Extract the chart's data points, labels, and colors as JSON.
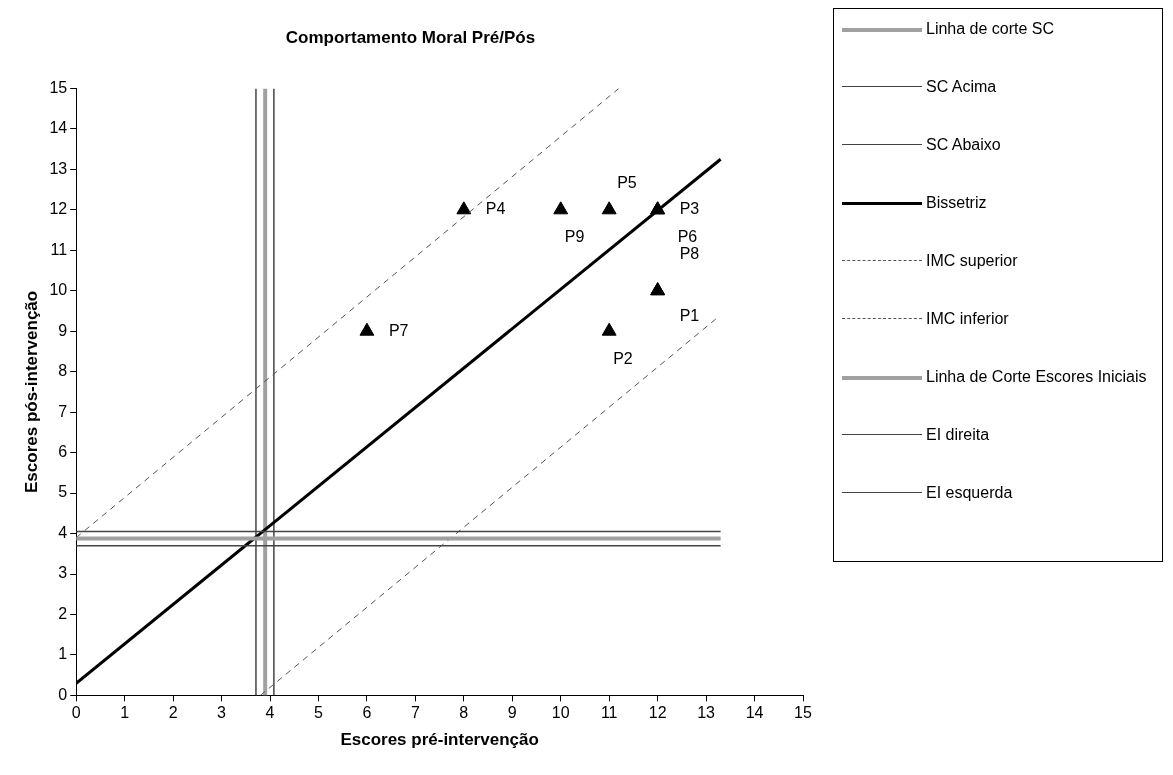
{
  "chart_data": {
    "type": "line",
    "title": "Comportamento Moral Pré/Pós",
    "xlabel": "Escores pré-intervenção",
    "ylabel": "Escores pós-intervenção",
    "xlim": [
      0,
      15
    ],
    "ylim": [
      0,
      15
    ],
    "xticks": [
      0,
      1,
      2,
      3,
      4,
      5,
      6,
      7,
      8,
      9,
      10,
      11,
      12,
      13,
      14,
      15
    ],
    "yticks": [
      0,
      1,
      2,
      3,
      4,
      5,
      6,
      7,
      8,
      9,
      10,
      11,
      12,
      13,
      14,
      15
    ],
    "grid": false,
    "legend": "right",
    "series": [
      {
        "name": "Linha de corte SC",
        "type": "line",
        "color": "#a0a0a0",
        "line_style": "solid",
        "x": [
          0,
          13.3
        ],
        "values": [
          3.88,
          3.88
        ]
      },
      {
        "name": "SC Acima",
        "type": "line",
        "color": "#444444",
        "line_style": "solid",
        "x": [
          0,
          13.3
        ],
        "values": [
          4.05,
          4.05
        ]
      },
      {
        "name": "SC Abaixo",
        "type": "line",
        "color": "#444444",
        "line_style": "solid",
        "x": [
          0,
          13.3
        ],
        "values": [
          3.7,
          3.7
        ]
      },
      {
        "name": "Bissetriz",
        "type": "line",
        "color": "#000000",
        "line_style": "solid",
        "x": [
          0,
          13.3
        ],
        "values": [
          0.3,
          13.25
        ]
      },
      {
        "name": "IMC superior",
        "type": "line",
        "color": "#555555",
        "line_style": "dashed",
        "x": [
          0,
          11.2
        ],
        "values": [
          3.9,
          15
        ]
      },
      {
        "name": "IMC inferior",
        "type": "line",
        "color": "#555555",
        "line_style": "dashed",
        "x": [
          3.8,
          13.2
        ],
        "values": [
          0,
          9.3
        ]
      },
      {
        "name": "Linha de Corte Escores Iniciais",
        "type": "line",
        "color": "#a0a0a0",
        "line_style": "solid",
        "x": [
          3.9,
          3.9
        ],
        "values": [
          0,
          15
        ]
      },
      {
        "name": "EI direita",
        "type": "line",
        "color": "#444444",
        "line_style": "solid",
        "x": [
          4.08,
          4.08
        ],
        "values": [
          0,
          15
        ]
      },
      {
        "name": "EI esquerda",
        "type": "line",
        "color": "#444444",
        "line_style": "solid",
        "x": [
          3.71,
          3.71
        ],
        "values": [
          0,
          15
        ]
      },
      {
        "type": "scatter",
        "marker": "triangle",
        "color": "#000000",
        "x": [
          12,
          11,
          12,
          8,
          11,
          12,
          6,
          12,
          10
        ],
        "values": [
          10,
          9,
          12,
          12,
          12,
          12,
          9,
          10,
          12
        ]
      }
    ],
    "annotations": [
      {
        "text": "P1",
        "x": 12,
        "y": 10
      },
      {
        "text": "P2",
        "x": 11,
        "y": 9
      },
      {
        "text": "P3",
        "x": 12,
        "y": 12
      },
      {
        "text": "P4",
        "x": 8,
        "y": 12
      },
      {
        "text": "P5",
        "x": 11,
        "y": 12
      },
      {
        "text": "P6",
        "x": 12,
        "y": 12
      },
      {
        "text": "P7",
        "x": 6,
        "y": 9
      },
      {
        "text": "P8",
        "x": 12,
        "y": 10
      },
      {
        "text": "P9",
        "x": 10,
        "y": 12
      }
    ]
  }
}
